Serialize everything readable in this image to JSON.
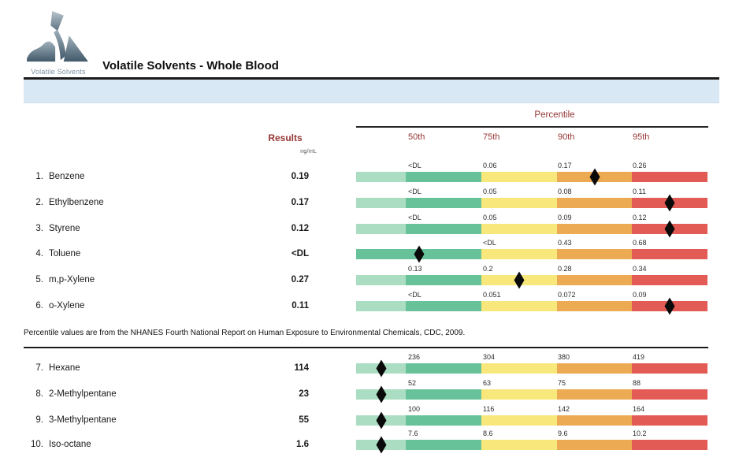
{
  "header": {
    "logo_text": "Volatile Solvents",
    "title": "Volatile Solvents - Whole Blood"
  },
  "columns": {
    "results_label": "Results",
    "results_unit": "ng/mL",
    "percentile_label": "Percentile",
    "percentile_headers": [
      "50th",
      "75th",
      "90th",
      "95th"
    ]
  },
  "note": "Percentile values are from the NHANES Fourth National Report on Human Exposure to Environmental Chemicals, CDC, 2009.",
  "colors": {
    "segments": [
      "#aaddc2",
      "#67c299",
      "#f8e87b",
      "#ecaa52",
      "#e25b55"
    ],
    "band_blue": "#d9e8f5",
    "accent_red": "#943634",
    "marker_black": "#0a0a0a",
    "logo_gray": "#7e93a3"
  },
  "sections": [
    {
      "rows": [
        {
          "num": "1.",
          "name": "Benzene",
          "result": "0.19",
          "percentiles": [
            "<DL",
            "0.06",
            "0.17",
            "0.26"
          ],
          "marker_segment": 3,
          "merge_light_green": false
        },
        {
          "num": "2.",
          "name": "Ethylbenzene",
          "result": "0.17",
          "percentiles": [
            "<DL",
            "0.05",
            "0.08",
            "0.11"
          ],
          "marker_segment": 4,
          "merge_light_green": false
        },
        {
          "num": "3.",
          "name": "Styrene",
          "result": "0.12",
          "percentiles": [
            "<DL",
            "0.05",
            "0.09",
            "0.12"
          ],
          "marker_segment": 4,
          "merge_light_green": false
        },
        {
          "num": "4.",
          "name": "Toluene",
          "result": "<DL",
          "percentiles": [
            "",
            "<DL",
            "0.43",
            "0.68"
          ],
          "marker_segment": 1,
          "merge_light_green": true
        },
        {
          "num": "5.",
          "name": "m,p-Xylene",
          "result": "0.27",
          "percentiles": [
            "0.13",
            "0.2",
            "0.28",
            "0.34"
          ],
          "marker_segment": 2,
          "merge_light_green": false
        },
        {
          "num": "6.",
          "name": "o-Xylene",
          "result": "0.11",
          "percentiles": [
            "<DL",
            "0.051",
            "0.072",
            "0.09"
          ],
          "marker_segment": 4,
          "merge_light_green": false
        }
      ]
    },
    {
      "rows": [
        {
          "num": "7.",
          "name": "Hexane",
          "result": "114",
          "percentiles": [
            "236",
            "304",
            "380",
            "419"
          ],
          "marker_segment": 0,
          "merge_light_green": false
        },
        {
          "num": "8.",
          "name": "2-Methylpentane",
          "result": "23",
          "percentiles": [
            "52",
            "63",
            "75",
            "88"
          ],
          "marker_segment": 0,
          "merge_light_green": false
        },
        {
          "num": "9.",
          "name": "3-Methylpentane",
          "result": "55",
          "percentiles": [
            "100",
            "116",
            "142",
            "164"
          ],
          "marker_segment": 0,
          "merge_light_green": false
        },
        {
          "num": "10.",
          "name": "Iso-octane",
          "result": "1.6",
          "percentiles": [
            "7.6",
            "8.6",
            "9.6",
            "10.2"
          ],
          "marker_segment": 0,
          "merge_light_green": false
        }
      ]
    }
  ]
}
